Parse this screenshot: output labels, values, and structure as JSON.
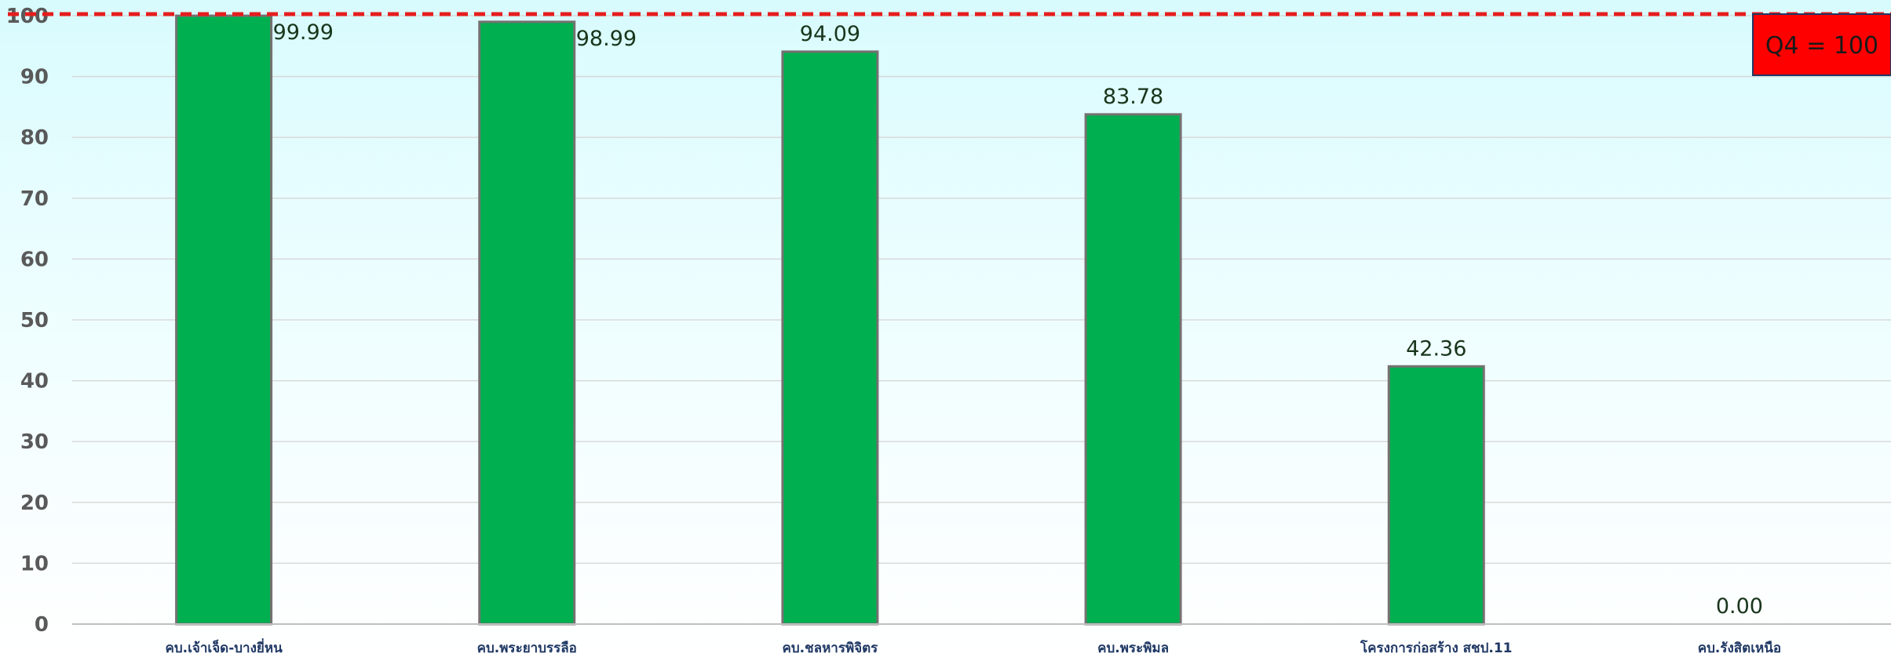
{
  "chart_data": {
    "type": "bar",
    "categories": [
      "คบ.เจ้าเจ็ด-บางยี่หน",
      "คบ.พระยาบรรลือ",
      "คบ.ชลหารพิจิตร",
      "คบ.พระพิมล",
      "โครงการก่อสร้าง สชป.11",
      "คบ.รังสิตเหนือ"
    ],
    "values": [
      99.99,
      98.99,
      94.09,
      83.78,
      42.36,
      0.0
    ],
    "value_labels": [
      "99.99",
      "98.99",
      "94.09",
      "83.78",
      "42.36",
      "0.00"
    ],
    "ylim": [
      0,
      100
    ],
    "yticks": [
      "0",
      "10",
      "20",
      "30",
      "40",
      "50",
      "60",
      "70",
      "80",
      "90",
      "100"
    ],
    "grid": true,
    "target": {
      "value": 100,
      "label": "Q4 = 100"
    },
    "colors": {
      "bar": "#00b050",
      "bar_outline": "#767171",
      "target_line": "#e51d1d",
      "target_box": "#ff0000",
      "value_label": "#18351b",
      "tick_label": "#595959",
      "grid": "#d9d9d9"
    }
  }
}
